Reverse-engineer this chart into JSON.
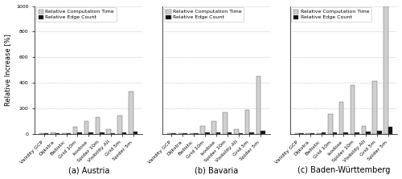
{
  "subplots": [
    {
      "title": "(a) Austria",
      "categories": [
        "Validity GCP",
        "Dijkstra",
        "Ballistic",
        "Grid 10m",
        "Isodose",
        "Spider 10m",
        "Visibility All",
        "Grid 5m",
        "Spider 5m"
      ],
      "comp_time": [
        2,
        8,
        2,
        55,
        100,
        130,
        35,
        140,
        330
      ],
      "edge_count": [
        1,
        1,
        1,
        10,
        8,
        8,
        5,
        10,
        15
      ]
    },
    {
      "title": "(b) Bavaria",
      "categories": [
        "Validity GCP",
        "Dijkstra",
        "Ballistic",
        "Grid 10m",
        "Isodose",
        "Spider 10m",
        "Visibility All",
        "Grid 5m",
        "Spider 5m"
      ],
      "comp_time": [
        2,
        5,
        2,
        60,
        100,
        170,
        35,
        185,
        450
      ],
      "edge_count": [
        1,
        1,
        1,
        10,
        8,
        8,
        5,
        10,
        20
      ]
    },
    {
      "title": "(c) Baden-Württemberg",
      "categories": [
        "Validity GCP",
        "Dijkstra",
        "Ballistic",
        "Grid 10m",
        "Isodose",
        "Spider 10m",
        "Visibility All",
        "Grid 5m",
        "Spider 5m"
      ],
      "comp_time": [
        2,
        5,
        5,
        155,
        250,
        380,
        60,
        410,
        1000
      ],
      "edge_count": [
        1,
        2,
        8,
        12,
        10,
        12,
        15,
        25,
        55
      ]
    }
  ],
  "ylabel": "Relative Increase [%]",
  "ylim": [
    0,
    1000
  ],
  "yticks": [
    0,
    200,
    400,
    600,
    800,
    1000
  ],
  "bar_color_comp": "#d0d0d0",
  "bar_color_edge": "#111111",
  "legend_labels": [
    "Relative Computation Time",
    "Relative Edge Count"
  ],
  "bar_width": 0.4,
  "background_color": "#ffffff",
  "grid_color": "#aaaaaa",
  "title_fontsize": 7,
  "tick_fontsize": 4.5,
  "label_fontsize": 6,
  "legend_fontsize": 4.5
}
